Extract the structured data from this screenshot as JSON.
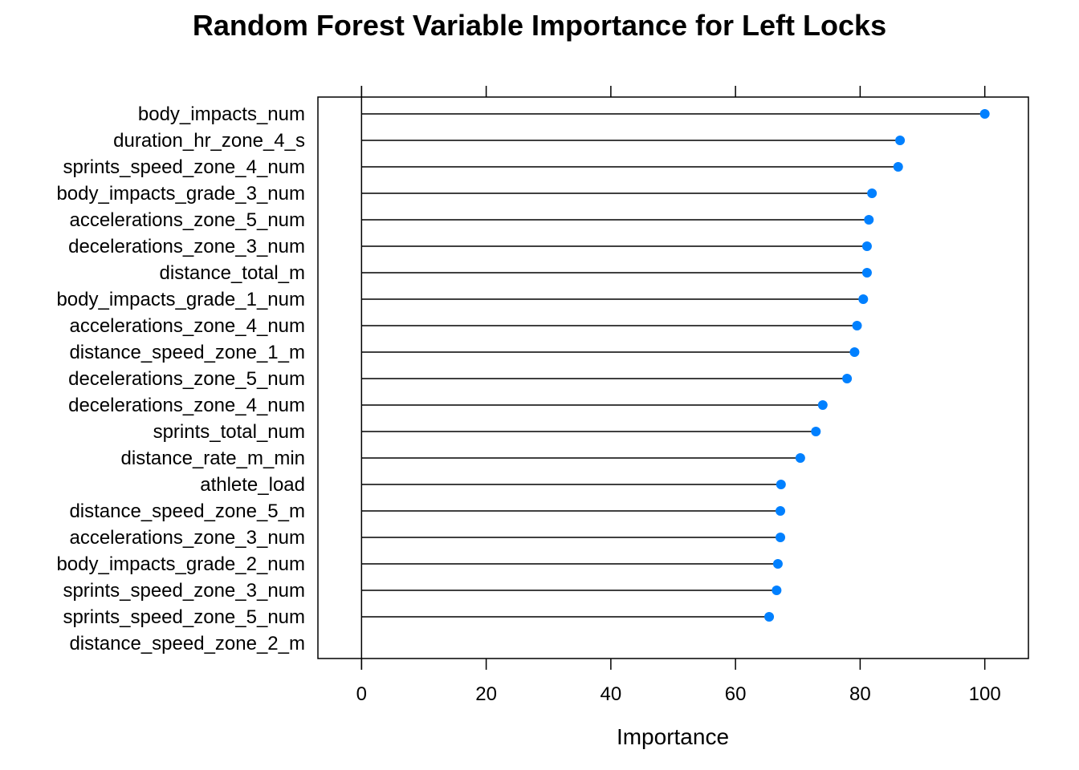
{
  "chart_data": {
    "type": "dot",
    "title": "Random Forest Variable Importance for Left Locks",
    "xlabel": "Importance",
    "ylabel": "",
    "xlim": [
      -7,
      107
    ],
    "xticks": [
      0,
      20,
      40,
      60,
      80,
      100
    ],
    "tick_labels": [
      "0",
      "20",
      "40",
      "60",
      "80",
      "100"
    ],
    "grid": false,
    "legend": "none",
    "point_color": "#0080ff",
    "line_color": "#000000",
    "categories": [
      "body_impacts_num",
      "duration_hr_zone_4_s",
      "sprints_speed_zone_4_num",
      "body_impacts_grade_3_num",
      "accelerations_zone_5_num",
      "decelerations_zone_3_num",
      "distance_total_m",
      "body_impacts_grade_1_num",
      "accelerations_zone_4_num",
      "distance_speed_zone_1_m",
      "decelerations_zone_5_num",
      "decelerations_zone_4_num",
      "sprints_total_num",
      "distance_rate_m_min",
      "athlete_load",
      "distance_speed_zone_5_m",
      "accelerations_zone_3_num",
      "body_impacts_grade_2_num",
      "sprints_speed_zone_3_num",
      "sprints_speed_zone_5_num",
      "distance_speed_zone_2_m"
    ],
    "values": [
      100,
      86.4,
      86.1,
      81.9,
      81.4,
      81.1,
      81.1,
      80.5,
      79.5,
      79.1,
      77.9,
      74.0,
      72.9,
      70.4,
      67.3,
      67.2,
      67.2,
      66.8,
      66.6,
      65.4,
      0
    ]
  }
}
